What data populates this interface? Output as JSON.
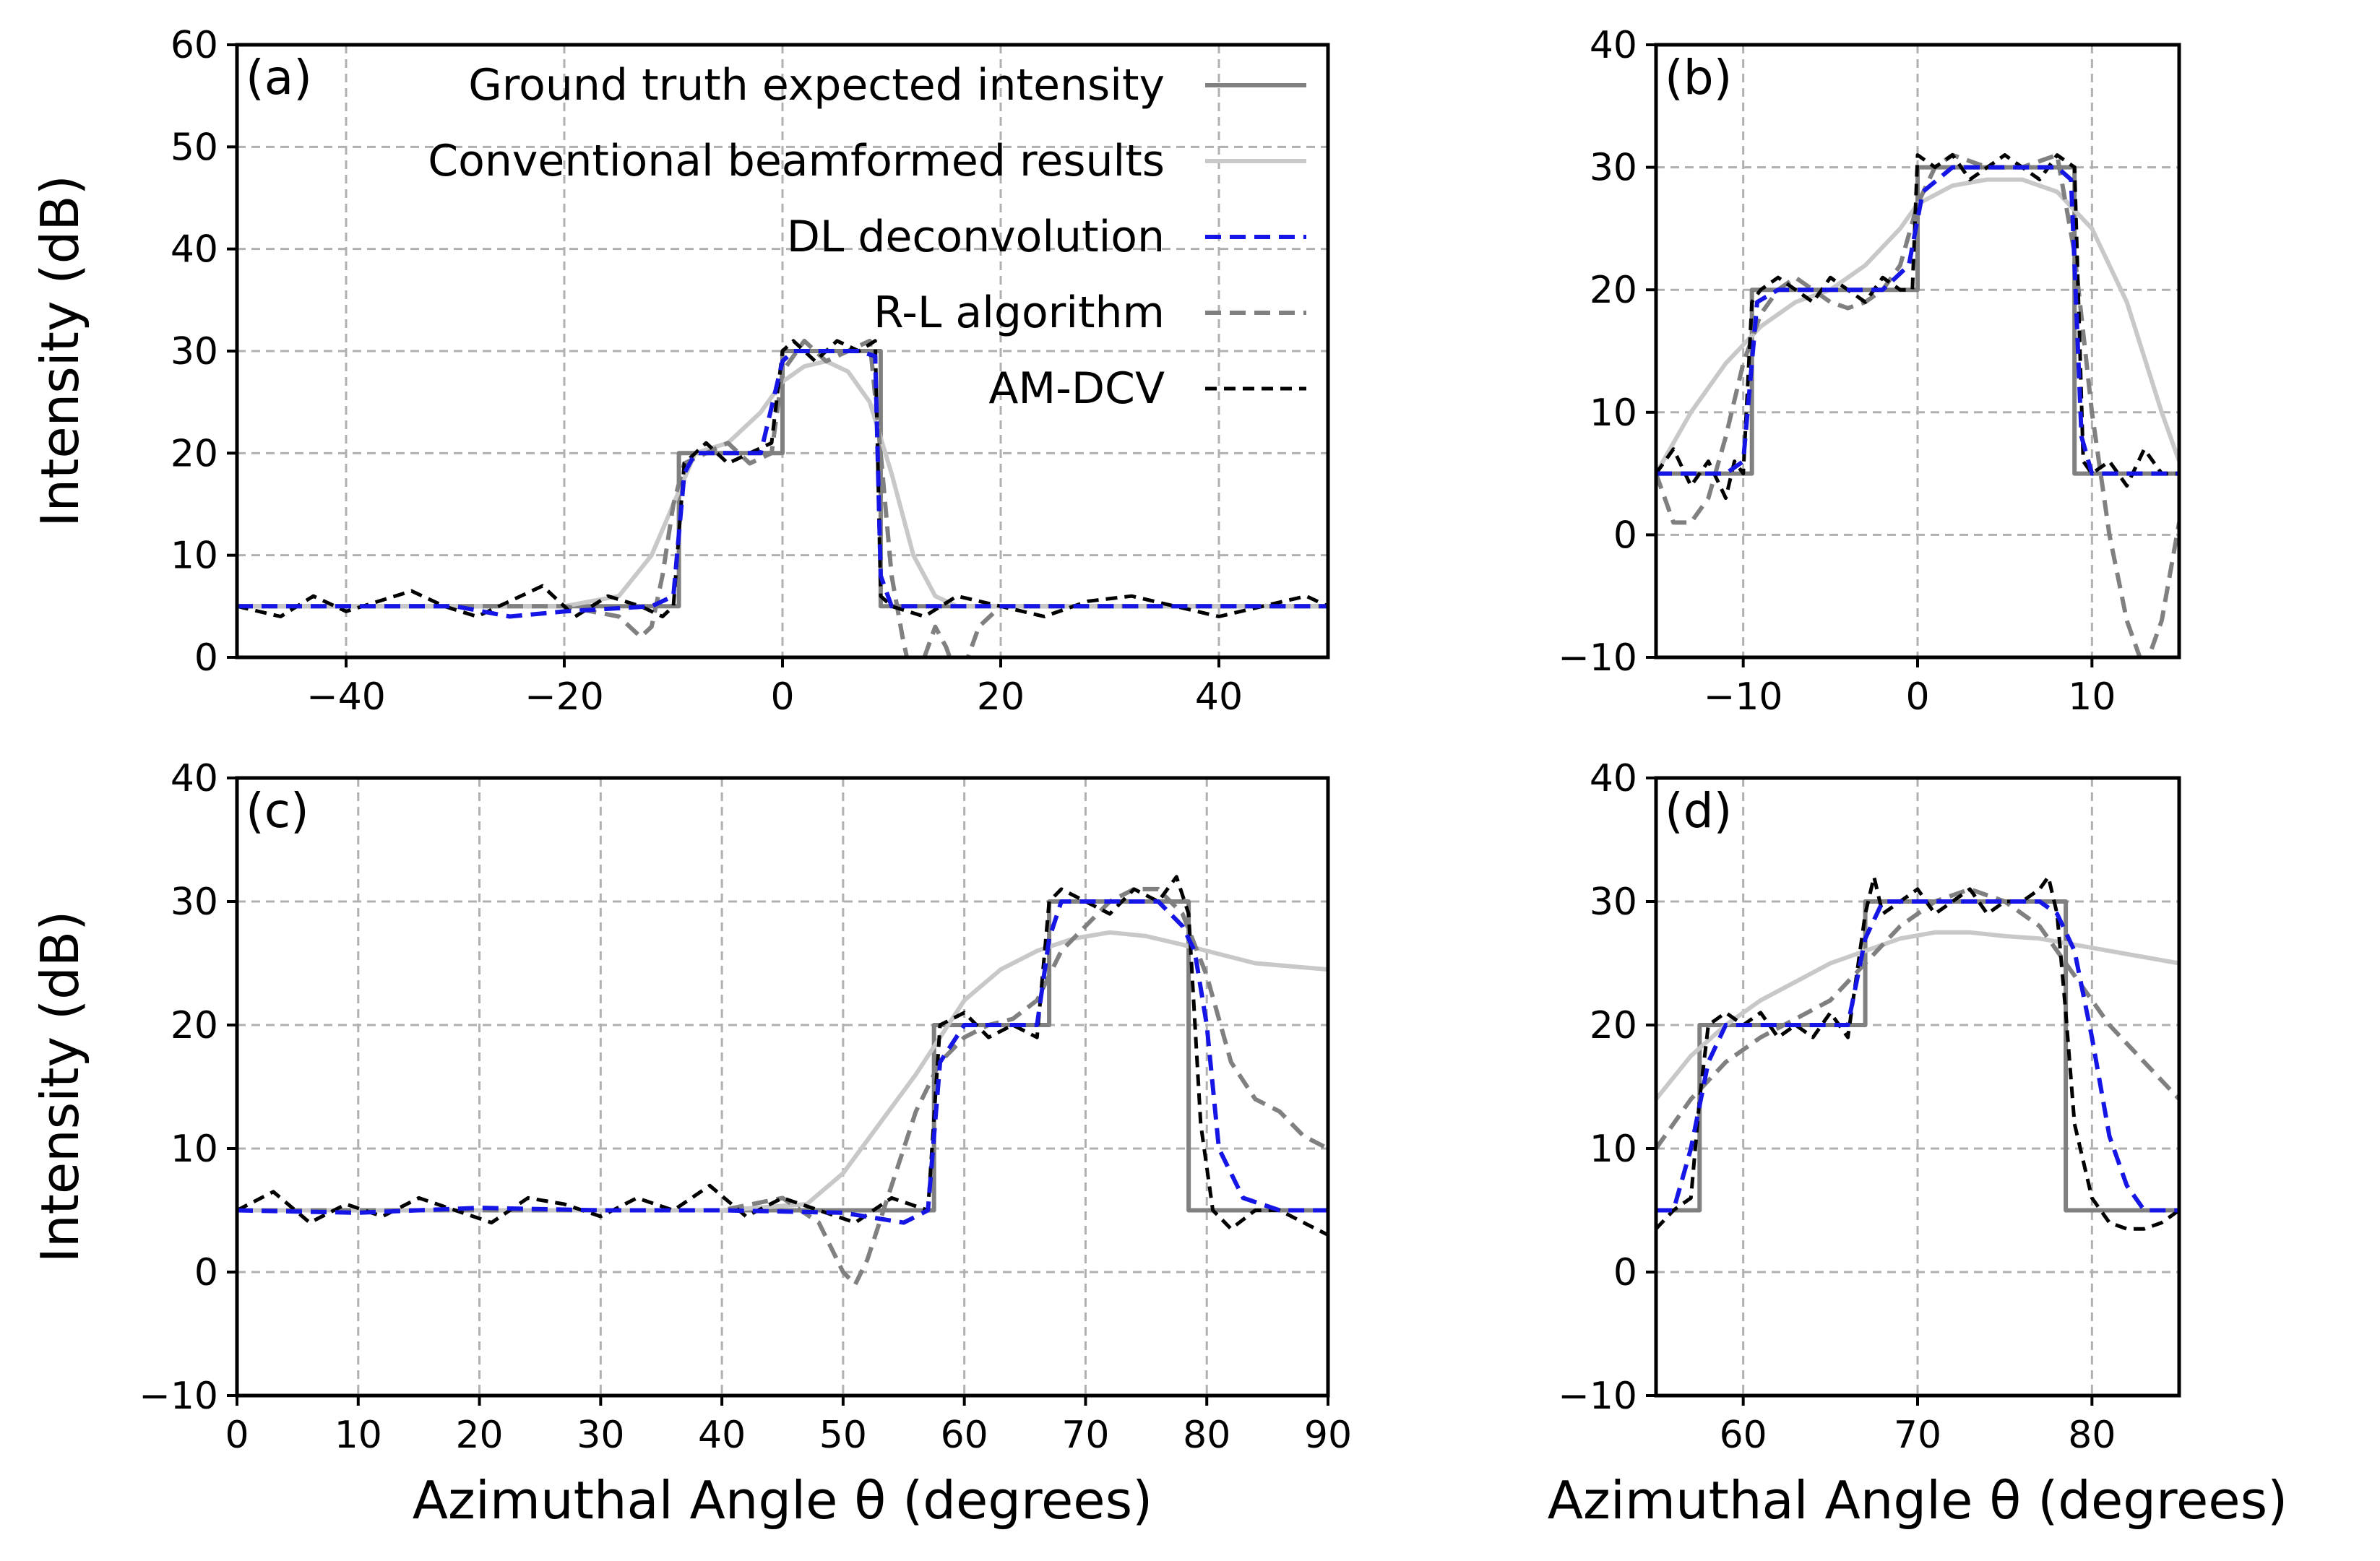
{
  "colors": {
    "ground_truth": "#808080",
    "conventional": "#c8c8c8",
    "dl": "#1515e6",
    "rl": "#808080",
    "amdcv": "#000000",
    "grid": "#b0b0b0"
  },
  "chart_data": [
    {
      "type": "line",
      "panel_label": "(a)",
      "xlabel": "",
      "ylabel": "Intensity (dB)",
      "xlim": [
        -50,
        50
      ],
      "ylim": [
        0,
        60
      ],
      "xticks": [
        -40,
        -20,
        0,
        20,
        40
      ],
      "yticks": [
        0,
        10,
        20,
        30,
        40,
        50,
        60
      ],
      "grid": true,
      "legend_position": "top-right",
      "legend": [
        {
          "key": "ground_truth",
          "label": "Ground truth expected intensity",
          "style": "solid"
        },
        {
          "key": "conventional",
          "label": "Conventional beamformed results",
          "style": "solid"
        },
        {
          "key": "dl",
          "label": "DL deconvolution",
          "style": "dashed"
        },
        {
          "key": "rl",
          "label": "R-L algorithm",
          "style": "dashed"
        },
        {
          "key": "amdcv",
          "label": "AM-DCV",
          "style": "dashed"
        }
      ],
      "series": [
        {
          "key": "ground_truth",
          "name": "Ground truth expected intensity",
          "x": [
            -50,
            -9.5,
            -9.5,
            0,
            0,
            9,
            9,
            50
          ],
          "y": [
            5,
            5,
            20,
            20,
            30,
            30,
            5,
            5
          ]
        },
        {
          "key": "conventional",
          "name": "Conventional beamformed results",
          "x": [
            -50,
            -30,
            -20,
            -15,
            -12,
            -10,
            -8,
            -5,
            -2,
            0,
            2,
            4,
            6,
            8,
            10,
            12,
            14,
            16,
            20,
            30,
            50
          ],
          "y": [
            5,
            5,
            5,
            6,
            10,
            15,
            20,
            21,
            24,
            27,
            28.5,
            29,
            28,
            25,
            18,
            10,
            6,
            5,
            5,
            5,
            5
          ]
        },
        {
          "key": "dl",
          "name": "DL deconvolution",
          "x": [
            -50,
            -40,
            -30,
            -25,
            -20,
            -12,
            -10,
            -9,
            -8,
            -5,
            -2,
            0,
            1,
            4,
            7,
            8.5,
            9,
            10,
            12,
            20,
            30,
            50
          ],
          "y": [
            5,
            5,
            5,
            4,
            4.5,
            5,
            6,
            18,
            20,
            20,
            20,
            29,
            30,
            30,
            30,
            29.5,
            8,
            5,
            5,
            5,
            5,
            5
          ]
        },
        {
          "key": "rl",
          "name": "R-L algorithm",
          "x": [
            -50,
            -20,
            -15,
            -13,
            -12,
            -11,
            -10,
            -9,
            -7,
            -5,
            -3,
            -1,
            0,
            2,
            4,
            6,
            8,
            9,
            10,
            11,
            12,
            13,
            14,
            15,
            16,
            17,
            18,
            20,
            25,
            30,
            50
          ],
          "y": [
            5,
            5,
            4,
            2,
            3,
            8,
            15,
            19,
            20,
            21,
            19,
            20,
            28,
            31,
            29,
            30,
            31,
            20,
            8,
            2,
            -3,
            0,
            3,
            1,
            -2,
            0,
            3,
            5,
            5,
            5,
            5
          ]
        },
        {
          "key": "amdcv",
          "name": "AM-DCV",
          "x": [
            -50,
            -46,
            -43,
            -40,
            -37,
            -34,
            -31,
            -28,
            -25,
            -22,
            -19,
            -16,
            -13,
            -11,
            -10,
            -9,
            -7,
            -5,
            -3,
            -1,
            0,
            1,
            3,
            5,
            7,
            8.5,
            9,
            10,
            13,
            16,
            20,
            24,
            28,
            32,
            36,
            40,
            44,
            48,
            50
          ],
          "y": [
            5,
            4,
            6,
            4.5,
            5.5,
            6.5,
            5,
            4,
            5.5,
            7,
            4,
            6,
            5,
            4,
            5,
            19,
            21,
            19,
            20,
            21,
            30,
            31,
            29,
            31,
            30,
            31,
            6,
            5,
            4,
            6,
            5,
            4,
            5.5,
            6,
            5,
            4,
            5,
            6,
            5
          ]
        }
      ]
    },
    {
      "type": "line",
      "panel_label": "(b)",
      "xlabel": "",
      "ylabel": "",
      "xlim": [
        -15,
        15
      ],
      "ylim": [
        -10,
        40
      ],
      "xticks": [
        -10,
        0,
        10
      ],
      "yticks": [
        -10,
        0,
        10,
        20,
        30,
        40
      ],
      "grid": true,
      "series": [
        {
          "key": "ground_truth",
          "name": "Ground truth expected intensity",
          "x": [
            -15,
            -9.5,
            -9.5,
            0,
            0,
            9,
            9,
            15
          ],
          "y": [
            5,
            5,
            20,
            20,
            30,
            30,
            5,
            5
          ]
        },
        {
          "key": "conventional",
          "name": "Conventional beamformed results",
          "x": [
            -15,
            -13,
            -11,
            -9,
            -7,
            -5,
            -3,
            -1,
            0,
            2,
            4,
            6,
            8,
            10,
            12,
            14,
            15
          ],
          "y": [
            5,
            10,
            14,
            17,
            19,
            20,
            22,
            25,
            27,
            28.5,
            29,
            29,
            28,
            25,
            19,
            10,
            6
          ]
        },
        {
          "key": "dl",
          "name": "DL deconvolution",
          "x": [
            -15,
            -11,
            -10,
            -9.2,
            -8,
            -6,
            -4,
            -2,
            -0.5,
            0.3,
            2,
            4,
            6,
            8,
            8.8,
            9.4,
            10,
            12,
            15
          ],
          "y": [
            5,
            5,
            6,
            19,
            20,
            20,
            20,
            20,
            22,
            28,
            30,
            30,
            30,
            30,
            29,
            8,
            5,
            5,
            5
          ]
        },
        {
          "key": "rl",
          "name": "R-L algorithm",
          "x": [
            -15,
            -14,
            -13,
            -12,
            -11,
            -10,
            -9,
            -8,
            -7,
            -6,
            -5,
            -4,
            -3,
            -2,
            -1,
            0,
            1,
            2,
            4,
            6,
            8,
            9,
            10,
            11,
            12,
            13,
            14,
            15
          ],
          "y": [
            5,
            1,
            1,
            3,
            8,
            14,
            18,
            20,
            21,
            20,
            19,
            18.5,
            19,
            20,
            22,
            27,
            30,
            31,
            30,
            30,
            31,
            23,
            10,
            0,
            -7,
            -11,
            -7,
            1
          ]
        },
        {
          "key": "amdcv",
          "name": "AM-DCV",
          "x": [
            -15,
            -14,
            -13,
            -12,
            -11,
            -10.5,
            -10,
            -9.5,
            -9,
            -8,
            -7,
            -6,
            -5,
            -4,
            -3,
            -2,
            -1,
            -0.3,
            0,
            1,
            2,
            3,
            4,
            5,
            6,
            7,
            8,
            9,
            9.5,
            10,
            11,
            12,
            13,
            14,
            15
          ],
          "y": [
            5,
            7,
            4,
            6,
            3,
            6,
            5,
            19,
            20,
            21,
            20,
            19,
            21,
            20,
            19,
            21,
            20,
            20,
            31,
            30,
            31,
            29,
            30,
            31,
            30,
            29,
            31,
            30,
            6,
            5,
            6,
            4,
            7,
            5,
            5
          ]
        }
      ]
    },
    {
      "type": "line",
      "panel_label": "(c)",
      "xlabel": "Azimuthal Angle θ (degrees)",
      "ylabel": "Intensity (dB)",
      "xlim": [
        0,
        90
      ],
      "ylim": [
        -10,
        40
      ],
      "xticks": [
        0,
        10,
        20,
        30,
        40,
        50,
        60,
        70,
        80,
        90
      ],
      "yticks": [
        -10,
        0,
        10,
        20,
        30,
        40
      ],
      "grid": true,
      "series": [
        {
          "key": "ground_truth",
          "name": "Ground truth expected intensity",
          "x": [
            0,
            57.5,
            57.5,
            67,
            67,
            78.5,
            78.5,
            90
          ],
          "y": [
            5,
            5,
            20,
            20,
            30,
            30,
            5,
            5
          ]
        },
        {
          "key": "conventional",
          "name": "Conventional beamformed results",
          "x": [
            0,
            40,
            47,
            50,
            53,
            56,
            58,
            60,
            63,
            66,
            69,
            72,
            75,
            78,
            80,
            84,
            90
          ],
          "y": [
            5,
            5,
            5.5,
            8,
            12,
            16,
            19,
            22,
            24.5,
            26,
            27,
            27.5,
            27.2,
            26.5,
            26,
            25,
            24.5
          ]
        },
        {
          "key": "dl",
          "name": "DL deconvolution",
          "x": [
            0,
            10,
            20,
            30,
            40,
            50,
            55,
            57,
            58,
            60,
            64,
            66,
            67,
            68,
            72,
            76,
            78,
            79,
            80,
            81,
            83,
            86,
            90
          ],
          "y": [
            5,
            4.8,
            5.2,
            5,
            5,
            4.8,
            4,
            5,
            17,
            20,
            20,
            20,
            27,
            30,
            30,
            30,
            28,
            26,
            20,
            10,
            6,
            5,
            5
          ]
        },
        {
          "key": "rl",
          "name": "R-L algorithm",
          "x": [
            0,
            30,
            40,
            45,
            48,
            50,
            51,
            52,
            54,
            56,
            58,
            60,
            62,
            64,
            66,
            68,
            70,
            72,
            74,
            76,
            78,
            80,
            82,
            84,
            86,
            88,
            90
          ],
          "y": [
            5,
            5,
            5,
            6,
            4,
            0,
            -1,
            1,
            7,
            13,
            17,
            19,
            20,
            20.5,
            22,
            26,
            28,
            30,
            31,
            31,
            29,
            24,
            17,
            14,
            13,
            11,
            10
          ]
        },
        {
          "key": "amdcv",
          "name": "AM-DCV",
          "x": [
            0,
            3,
            6,
            9,
            12,
            15,
            18,
            21,
            24,
            27,
            30,
            33,
            36,
            39,
            42,
            45,
            48,
            51,
            54,
            57,
            58,
            60,
            62,
            64,
            66,
            67,
            68,
            70,
            72,
            74,
            76,
            77.5,
            78.5,
            79.5,
            80.5,
            82,
            84,
            86,
            88,
            90
          ],
          "y": [
            5,
            6.5,
            4,
            5.5,
            4.5,
            6,
            5,
            4,
            6,
            5.5,
            4.5,
            6,
            5,
            7,
            4.5,
            6,
            5,
            4,
            6,
            5,
            20,
            21,
            19,
            20,
            19,
            30,
            31,
            30,
            29,
            31,
            30,
            32,
            29,
            12,
            5,
            3.5,
            5,
            5,
            4,
            3
          ]
        }
      ]
    },
    {
      "type": "line",
      "panel_label": "(d)",
      "xlabel": "Azimuthal Angle θ (degrees)",
      "ylabel": "",
      "xlim": [
        55,
        85
      ],
      "ylim": [
        -10,
        40
      ],
      "xticks": [
        60,
        70,
        80
      ],
      "yticks": [
        -10,
        0,
        10,
        20,
        30,
        40
      ],
      "grid": true,
      "series": [
        {
          "key": "ground_truth",
          "name": "Ground truth expected intensity",
          "x": [
            55,
            57.5,
            57.5,
            67,
            67,
            78.5,
            78.5,
            85
          ],
          "y": [
            5,
            5,
            20,
            20,
            30,
            30,
            5,
            5
          ]
        },
        {
          "key": "conventional",
          "name": "Conventional beamformed results",
          "x": [
            55,
            57,
            59,
            61,
            63,
            65,
            67,
            69,
            71,
            73,
            75,
            77,
            79,
            81,
            83,
            85
          ],
          "y": [
            14,
            17.5,
            20,
            22,
            23.5,
            25,
            26,
            27,
            27.5,
            27.5,
            27.2,
            27,
            26.5,
            26,
            25.5,
            25
          ]
        },
        {
          "key": "dl",
          "name": "DL deconvolution",
          "x": [
            55,
            56,
            57,
            58,
            59,
            61,
            64,
            66,
            67,
            68,
            71,
            74,
            77,
            78,
            79,
            80,
            81,
            82,
            83,
            85
          ],
          "y": [
            5,
            5,
            10,
            17,
            20,
            20,
            20,
            20,
            27,
            30,
            30,
            30,
            30,
            29,
            26,
            19,
            11,
            7,
            5,
            5
          ]
        },
        {
          "key": "rl",
          "name": "R-L algorithm",
          "x": [
            55,
            57,
            59,
            61,
            63,
            65,
            67,
            69,
            71,
            73,
            75,
            77,
            79,
            81,
            83,
            85
          ],
          "y": [
            10,
            14,
            17,
            19,
            20.5,
            22,
            25,
            28,
            30,
            31,
            30,
            28,
            24,
            20,
            17,
            14
          ]
        },
        {
          "key": "amdcv",
          "name": "AM-DCV",
          "x": [
            55,
            56,
            57,
            57.5,
            58,
            59,
            60,
            61,
            62,
            63,
            64,
            65,
            66,
            67,
            67.5,
            68,
            69,
            70,
            71,
            72,
            73,
            74,
            75,
            76,
            77,
            77.5,
            78,
            78.5,
            79,
            80,
            81,
            82,
            83,
            84,
            85
          ],
          "y": [
            3.5,
            5,
            6,
            14,
            20,
            21,
            20,
            21,
            19,
            20,
            19,
            21,
            19,
            29,
            32,
            29,
            30,
            31,
            29,
            30,
            31,
            29,
            30,
            30,
            31,
            32,
            29,
            21,
            12,
            6,
            4,
            3.5,
            3.5,
            4,
            5
          ]
        }
      ]
    }
  ]
}
